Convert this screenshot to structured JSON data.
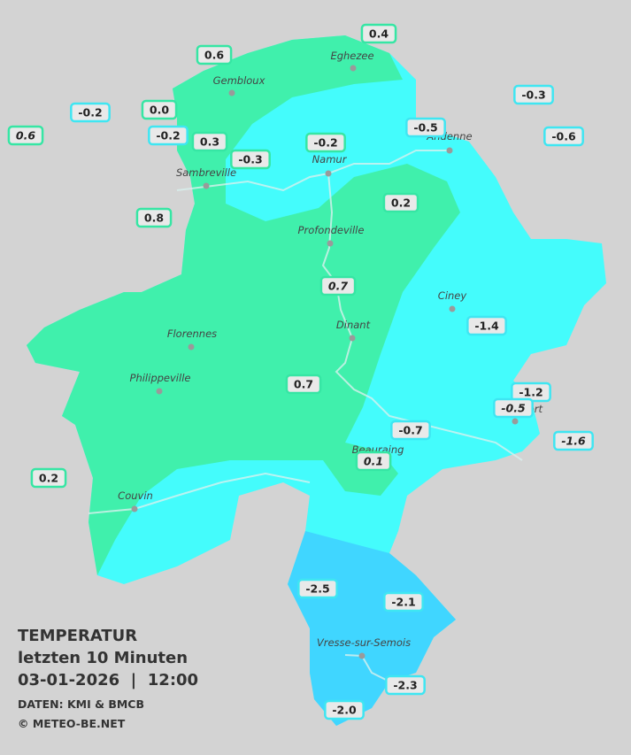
{
  "title": {
    "line1": "TEMPERATUR",
    "line2": "letzten 10 Minuten",
    "line3": "03-01-2026  |  12:00",
    "source": "DATEN: KMI & BMCB",
    "copyright": "© METEO-BE.NET"
  },
  "cities": [
    "Eghezee",
    "Gembloux",
    "Andenne",
    "Namur",
    "Sambreville",
    "Profondeville",
    "Ciney",
    "Dinant",
    "Florennes",
    "Philippeville",
    "Rochefort",
    "Beauraing",
    "Couvin",
    "Vresse-sur-Semois"
  ],
  "stations": [
    "0.4",
    "0.6",
    "-0.2",
    "0.0",
    "0.6",
    "-0.2",
    "0.3",
    "-0.3",
    "-0.2",
    "-0.5",
    "-0.3",
    "-0.6",
    "0.8",
    "0.2",
    "0.7",
    "-1.4",
    "0.7",
    "-1.2",
    "-0.5",
    "-1.6",
    "-0.7",
    "0.1",
    "0.2",
    "-2.5",
    "-2.1",
    "-2.3",
    "-2.0"
  ]
}
